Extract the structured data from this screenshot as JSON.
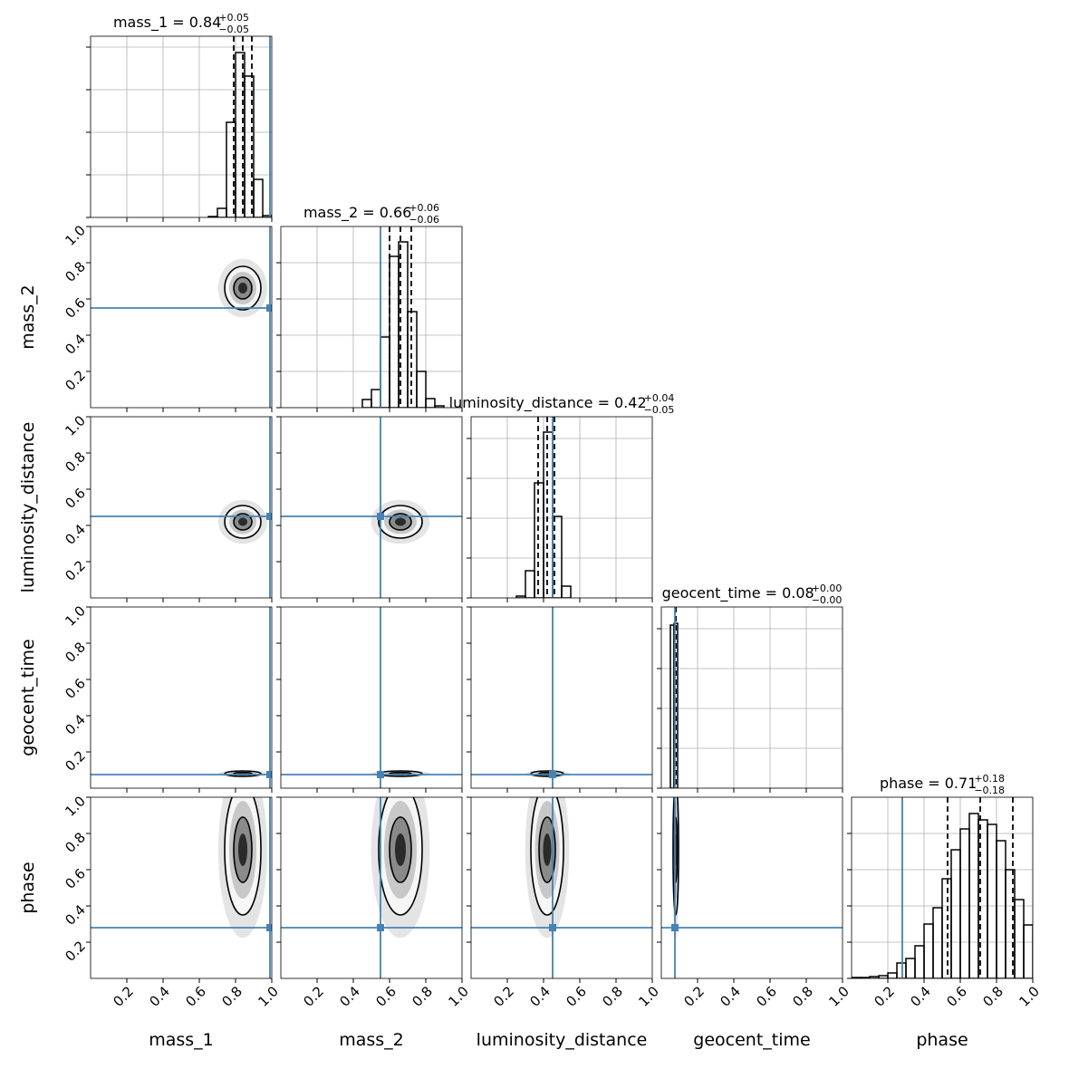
{
  "chart_data": {
    "type": "corner",
    "truth_color": "#4682b4",
    "hist_color": "#000000",
    "grid": true,
    "xlim": [
      0,
      1
    ],
    "xticks": [
      0.2,
      0.4,
      0.6,
      0.8,
      {
        "value": 1,
        "label": "1.0"
      }
    ],
    "parameters": [
      {
        "name": "mass_1",
        "title": "mass_1 =",
        "median": 0.84,
        "upper": {
          "value": 0.05,
          "label": "+0.05"
        },
        "lower": {
          "value": 0.05,
          "label": "−0.05"
        },
        "truth": 0.99,
        "bins": [
          0.65,
          0.7,
          0.75,
          0.8,
          0.85,
          0.9,
          0.95,
          1.0
        ],
        "counts": [
          1,
          10,
          105,
          182,
          156,
          42,
          2
        ],
        "hist_ylim": [
          0,
          200
        ],
        "hist_yticks": [
          0,
          47,
          94,
          141,
          188
        ]
      },
      {
        "name": "mass_2",
        "title": "mass_2 =",
        "median": 0.66,
        "upper": {
          "value": 0.06,
          "label": "+0.06"
        },
        "lower": {
          "value": 0.06,
          "label": "−0.06"
        },
        "truth": 0.55,
        "bins": [
          0.45,
          0.5,
          0.55,
          0.6,
          0.65,
          0.7,
          0.75,
          0.8,
          0.85,
          0.9
        ],
        "counts": [
          9,
          20,
          78,
          167,
          183,
          106,
          40,
          10,
          2
        ],
        "hist_ylim": [
          0,
          200
        ],
        "hist_yticks": [
          0,
          40,
          80,
          120,
          160
        ]
      },
      {
        "name": "luminosity_distance",
        "title": "luminosity_distance =",
        "median": 0.42,
        "upper": {
          "value": 0.04,
          "label": "+0.04"
        },
        "lower": {
          "value": 0.05,
          "label": "−0.05"
        },
        "truth": 0.45,
        "bins": [
          0.25,
          0.3,
          0.35,
          0.4,
          0.45,
          0.5,
          0.55
        ],
        "counts": [
          2,
          30,
          127,
          183,
          90,
          13
        ],
        "hist_ylim": [
          0,
          200
        ],
        "hist_yticks": [
          0,
          44,
          88,
          132,
          176
        ]
      },
      {
        "name": "geocent_time",
        "title": "geocent_time =",
        "median": 0.08,
        "upper": {
          "value": 0,
          "label": "+0.00"
        },
        "lower": {
          "value": 0,
          "label": "−0.00"
        },
        "truth": 0.075,
        "bins": [
          0.05,
          0.07,
          0.09
        ],
        "counts": [
          180,
          182
        ],
        "hist_ylim": [
          0,
          200
        ],
        "hist_yticks": [
          0,
          44,
          88,
          132,
          176
        ]
      },
      {
        "name": "phase",
        "title": "phase =",
        "median": 0.71,
        "upper": {
          "value": 0.18,
          "label": "+0.18"
        },
        "lower": {
          "value": 0.18,
          "label": "−0.18"
        },
        "truth": 0.28,
        "bins": [
          0,
          0.05,
          0.1,
          0.15,
          0.2,
          0.25,
          0.3,
          0.35,
          0.4,
          0.45,
          0.5,
          0.55,
          0.6,
          0.65,
          0.7,
          0.75,
          0.8,
          0.85,
          0.9,
          0.95,
          1.0
        ],
        "counts": [
          1,
          1,
          2,
          3,
          6,
          17,
          22,
          36,
          60,
          78,
          110,
          142,
          165,
          182,
          175,
          170,
          152,
          120,
          87,
          59
        ],
        "hist_ylim": [
          0,
          200
        ],
        "hist_yticks": [
          0,
          40,
          80,
          120,
          160
        ]
      }
    ]
  }
}
